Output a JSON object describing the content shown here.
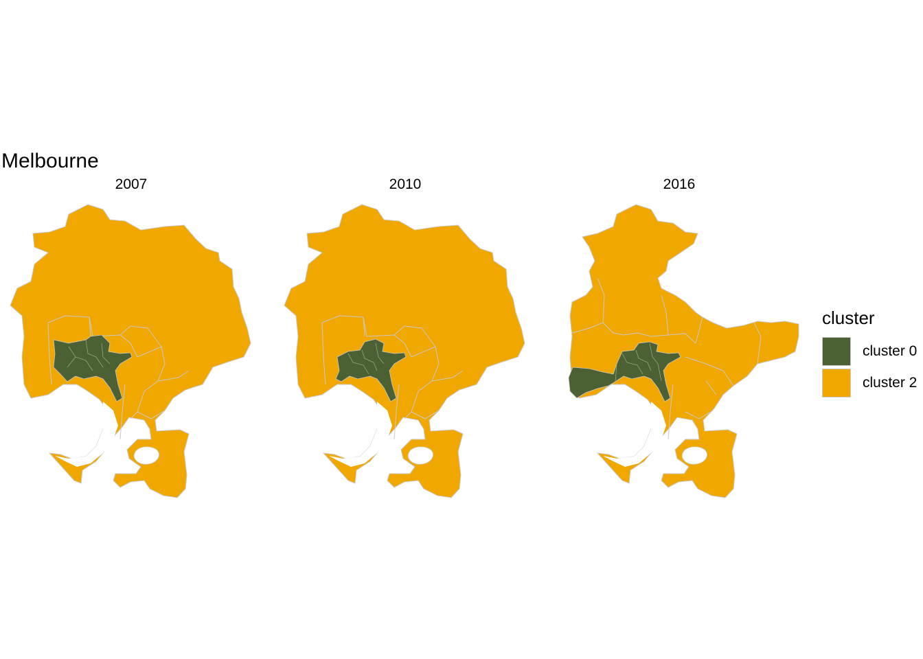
{
  "title": "Melbourne",
  "facets": [
    {
      "year": "2007",
      "west_cluster": "cluster 2"
    },
    {
      "year": "2010",
      "west_cluster": "cluster 2"
    },
    {
      "year": "2016",
      "west_cluster": "cluster 0"
    }
  ],
  "legend": {
    "title": "cluster",
    "items": [
      {
        "label": "cluster 0",
        "color": "#4b6134"
      },
      {
        "label": "cluster 2",
        "color": "#f0a800"
      }
    ]
  },
  "colors": {
    "cluster_0": "#4b6134",
    "cluster_2": "#f0a800",
    "border": "#c9c9c9"
  }
}
